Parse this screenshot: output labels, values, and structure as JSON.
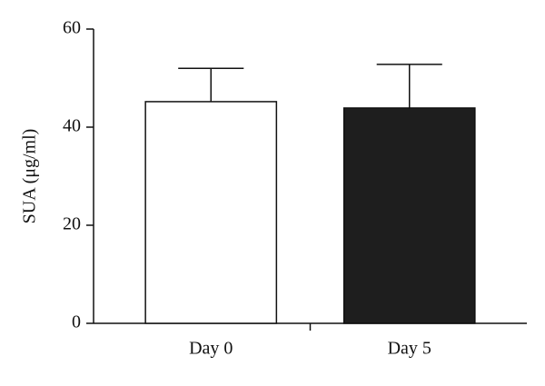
{
  "chart_data": {
    "type": "bar",
    "y_label": "SUA (μg/ml)",
    "categories": [
      "Day 0",
      "Day 5"
    ],
    "values": [
      45.2,
      43.9
    ],
    "errors": [
      6.8,
      8.9
    ],
    "colors": [
      "#ffffff",
      "#1e1e1e"
    ],
    "ylim": [
      0,
      60
    ],
    "yticks": [
      0,
      20,
      40,
      60
    ]
  }
}
